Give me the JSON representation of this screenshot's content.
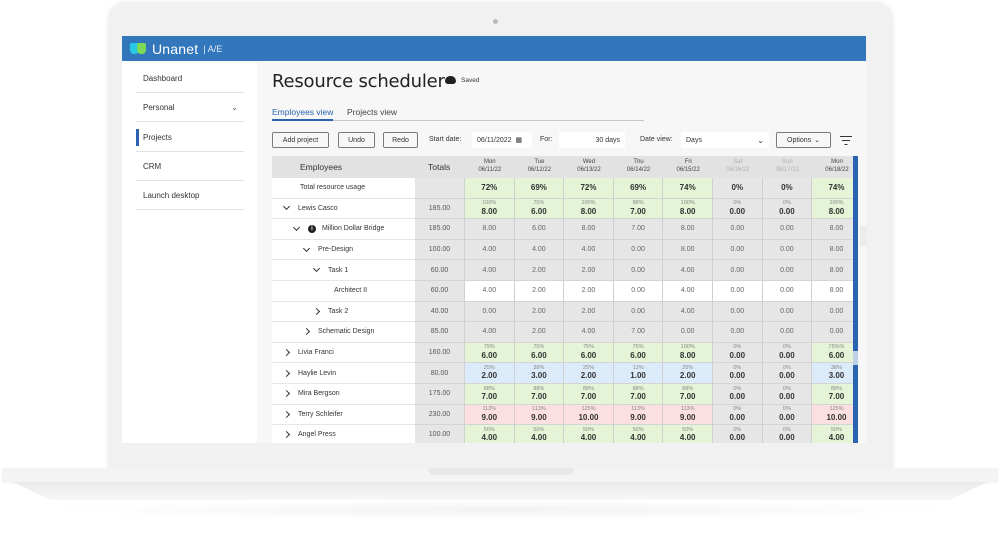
{
  "app": {
    "brand": "Unanet",
    "module": "A/E",
    "brand_color": "#3276bb"
  },
  "sidebar": {
    "items": [
      {
        "label": "Dashboard",
        "active": false,
        "expandable": false
      },
      {
        "label": "Personal",
        "active": false,
        "expandable": true
      },
      {
        "label": "Projects",
        "active": true,
        "expandable": false
      },
      {
        "label": "CRM",
        "active": false,
        "expandable": false
      },
      {
        "label": "Launch desktop",
        "active": false,
        "expandable": false
      }
    ]
  },
  "page": {
    "title": "Resource scheduler",
    "save_status": "Saved"
  },
  "tabs": [
    {
      "label": "Employees view",
      "active": true
    },
    {
      "label": "Projects view",
      "active": false
    }
  ],
  "toolbar": {
    "add_project": "Add project",
    "undo": "Undo",
    "redo": "Redo",
    "start_date_label": "Start date:",
    "start_date_value": "06/11/2022",
    "for_label": "For:",
    "for_value": "30 days",
    "date_view_label": "Date view:",
    "date_view_value": "Days",
    "options": "Options"
  },
  "grid": {
    "headers": {
      "employees": "Employees",
      "totals": "Totals",
      "days": [
        {
          "dow": "Mon",
          "date": "06/11/22",
          "weekend": false
        },
        {
          "dow": "Tue",
          "date": "06/12/22",
          "weekend": false
        },
        {
          "dow": "Wed",
          "date": "06/13/22",
          "weekend": false
        },
        {
          "dow": "Thu",
          "date": "06/14/22",
          "weekend": false
        },
        {
          "dow": "Fri",
          "date": "06/15/22",
          "weekend": false
        },
        {
          "dow": "Sat",
          "date": "06/16/22",
          "weekend": true
        },
        {
          "dow": "Sun",
          "date": "06/17/22",
          "weekend": true
        },
        {
          "dow": "Mon",
          "date": "06/18/22",
          "weekend": false
        }
      ]
    },
    "rows": [
      {
        "name": "Total resource usage",
        "indent": 0,
        "toggle": "none",
        "total": "",
        "cells": [
          [
            "72%",
            ""
          ],
          [
            "69%",
            ""
          ],
          [
            "72%",
            ""
          ],
          [
            "69%",
            ""
          ],
          [
            "74%",
            ""
          ],
          [
            "0%",
            ""
          ],
          [
            "0%",
            ""
          ],
          [
            "74%",
            ""
          ]
        ],
        "colors": [
          "green",
          "green",
          "green",
          "green",
          "green",
          "gray",
          "gray",
          "green"
        ],
        "kind": "summary"
      },
      {
        "name": "Lewis Casco",
        "indent": 0,
        "toggle": "down",
        "total": "185.00",
        "cells": [
          [
            "100%",
            "8.00"
          ],
          [
            "75%",
            "6.00"
          ],
          [
            "100%",
            "8.00"
          ],
          [
            "88%",
            "7.00"
          ],
          [
            "100%",
            "8.00"
          ],
          [
            "0%",
            "0.00"
          ],
          [
            "0%",
            "0.00"
          ],
          [
            "100%",
            "8.00"
          ]
        ],
        "colors": [
          "green",
          "green",
          "green",
          "green",
          "green",
          "gray",
          "gray",
          "green"
        ],
        "kind": "employee"
      },
      {
        "name": "Million Dollar Bridge",
        "indent": 1,
        "toggle": "down",
        "info": true,
        "total": "185.00",
        "cells": [
          [
            "",
            "8.00"
          ],
          [
            "",
            "6.00"
          ],
          [
            "",
            "8.00"
          ],
          [
            "",
            "7.00"
          ],
          [
            "",
            "8.00"
          ],
          [
            "",
            "0.00"
          ],
          [
            "",
            "0.00"
          ],
          [
            "",
            "8.00"
          ]
        ],
        "colors": [
          "gray",
          "gray",
          "gray",
          "gray",
          "gray",
          "gray",
          "gray",
          "gray"
        ],
        "kind": "project"
      },
      {
        "name": "Pre-Design",
        "indent": 2,
        "toggle": "down",
        "total": "100.00",
        "cells": [
          [
            "",
            "4.00"
          ],
          [
            "",
            "4.00"
          ],
          [
            "",
            "4.00"
          ],
          [
            "",
            "0.00"
          ],
          [
            "",
            "8.00"
          ],
          [
            "",
            "0.00"
          ],
          [
            "",
            "0.00"
          ],
          [
            "",
            "8.00"
          ]
        ],
        "colors": [
          "gray",
          "gray",
          "gray",
          "gray",
          "gray",
          "gray",
          "gray",
          "gray"
        ],
        "kind": "phase"
      },
      {
        "name": "Task 1",
        "indent": 3,
        "toggle": "down",
        "total": "60.00",
        "cells": [
          [
            "",
            "4.00"
          ],
          [
            "",
            "2.00"
          ],
          [
            "",
            "2.00"
          ],
          [
            "",
            "0.00"
          ],
          [
            "",
            "4.00"
          ],
          [
            "",
            "0.00"
          ],
          [
            "",
            "0.00"
          ],
          [
            "",
            "8.00"
          ]
        ],
        "colors": [
          "gray",
          "gray",
          "gray",
          "gray",
          "gray",
          "gray",
          "gray",
          "gray"
        ],
        "kind": "task"
      },
      {
        "name": "Architect II",
        "indent": 4,
        "toggle": "none",
        "total": "60.00",
        "cells": [
          [
            "",
            "4.00"
          ],
          [
            "",
            "2.00"
          ],
          [
            "",
            "2.00"
          ],
          [
            "",
            "0.00"
          ],
          [
            "",
            "4.00"
          ],
          [
            "",
            "0.00"
          ],
          [
            "",
            "0.00"
          ],
          [
            "",
            "8.00"
          ]
        ],
        "colors": [
          "white",
          "white",
          "white",
          "white",
          "white",
          "white",
          "white",
          "white"
        ],
        "kind": "role"
      },
      {
        "name": "Task 2",
        "indent": 3,
        "toggle": "right",
        "total": "40.00",
        "cells": [
          [
            "",
            "0.00"
          ],
          [
            "",
            "2.00"
          ],
          [
            "",
            "2.00"
          ],
          [
            "",
            "0.00"
          ],
          [
            "",
            "4.00"
          ],
          [
            "",
            "0.00"
          ],
          [
            "",
            "0.00"
          ],
          [
            "",
            "0.00"
          ]
        ],
        "colors": [
          "gray",
          "gray",
          "gray",
          "gray",
          "gray",
          "gray",
          "gray",
          "gray"
        ],
        "kind": "task"
      },
      {
        "name": "Schematic Design",
        "indent": 2,
        "toggle": "right",
        "total": "85.00",
        "cells": [
          [
            "",
            "4.00"
          ],
          [
            "",
            "2.00"
          ],
          [
            "",
            "4.00"
          ],
          [
            "",
            "7.00"
          ],
          [
            "",
            "0.00"
          ],
          [
            "",
            "0.00"
          ],
          [
            "",
            "0.00"
          ],
          [
            "",
            "0.00"
          ]
        ],
        "colors": [
          "gray",
          "gray",
          "gray",
          "gray",
          "gray",
          "gray",
          "gray",
          "gray"
        ],
        "kind": "phase"
      },
      {
        "name": "Livia Franci",
        "indent": 0,
        "toggle": "right",
        "total": "160.00",
        "cells": [
          [
            "75%",
            "6.00"
          ],
          [
            "75%",
            "6.00"
          ],
          [
            "75%",
            "6.00"
          ],
          [
            "75%",
            "6.00"
          ],
          [
            "100%",
            "8.00"
          ],
          [
            "0%",
            "0.00"
          ],
          [
            "0%",
            "0.00"
          ],
          [
            "75%%",
            "6.00"
          ]
        ],
        "colors": [
          "green",
          "green",
          "green",
          "green",
          "green",
          "gray",
          "gray",
          "green"
        ],
        "kind": "employee"
      },
      {
        "name": "Haylie Levin",
        "indent": 0,
        "toggle": "right",
        "total": "80.00",
        "cells": [
          [
            "25%",
            "2.00"
          ],
          [
            "38%",
            "3.00"
          ],
          [
            "25%",
            "2.00"
          ],
          [
            "13%",
            "1.00"
          ],
          [
            "25%",
            "2.00"
          ],
          [
            "0%",
            "0.00"
          ],
          [
            "0%",
            "0.00"
          ],
          [
            "38%",
            "3.00"
          ]
        ],
        "colors": [
          "blue",
          "blue",
          "blue",
          "blue",
          "blue",
          "gray",
          "gray",
          "blue"
        ],
        "kind": "employee"
      },
      {
        "name": "Mira Bergson",
        "indent": 0,
        "toggle": "right",
        "total": "175.00",
        "cells": [
          [
            "88%",
            "7.00"
          ],
          [
            "88%",
            "7.00"
          ],
          [
            "88%",
            "7.00"
          ],
          [
            "88%",
            "7.00"
          ],
          [
            "88%",
            "7.00"
          ],
          [
            "0%",
            "0.00"
          ],
          [
            "0%",
            "0.00"
          ],
          [
            "88%",
            "7.00"
          ]
        ],
        "colors": [
          "green",
          "green",
          "green",
          "green",
          "green",
          "gray",
          "gray",
          "green"
        ],
        "kind": "employee"
      },
      {
        "name": "Terry Schleifer",
        "indent": 0,
        "toggle": "right",
        "total": "230.00",
        "cells": [
          [
            "113%",
            "9.00"
          ],
          [
            "113%",
            "9.00"
          ],
          [
            "125%",
            "10.00"
          ],
          [
            "113%",
            "9.00"
          ],
          [
            "113%",
            "9.00"
          ],
          [
            "0%",
            "0.00"
          ],
          [
            "0%",
            "0.00"
          ],
          [
            "125%",
            "10.00"
          ]
        ],
        "colors": [
          "red",
          "red",
          "red",
          "red",
          "red",
          "gray",
          "gray",
          "red"
        ],
        "kind": "employee"
      },
      {
        "name": "Angel Press",
        "indent": 0,
        "toggle": "right",
        "total": "100.00",
        "cells": [
          [
            "50%",
            "4.00"
          ],
          [
            "50%",
            "4.00"
          ],
          [
            "50%",
            "4.00"
          ],
          [
            "50%",
            "4.00"
          ],
          [
            "50%",
            "4.00"
          ],
          [
            "0%",
            "0.00"
          ],
          [
            "0%",
            "0.00"
          ],
          [
            "50%",
            "4.00"
          ]
        ],
        "colors": [
          "green",
          "green",
          "green",
          "green",
          "green",
          "gray",
          "gray",
          "green"
        ],
        "kind": "employee"
      }
    ]
  },
  "colors": {
    "green": "#e5f4d6",
    "blue": "#dcebfa",
    "red": "#fbdfe1",
    "gray": "#e6e6e6",
    "accent": "#2a64b0"
  }
}
